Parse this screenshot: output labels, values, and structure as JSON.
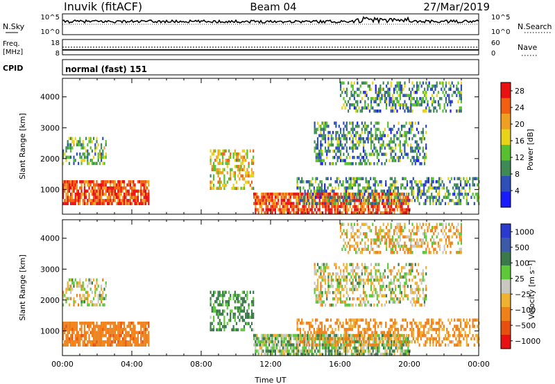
{
  "header": {
    "station": "Inuvik (fitACF)",
    "beam": "Beam 04",
    "date": "27/Mar/2019"
  },
  "strip_panels": {
    "nsky": {
      "label": "N.Sky",
      "ticks": [
        "10^5",
        "10^0"
      ]
    },
    "nsearch": {
      "label": "N.Search",
      "ticks": [
        "10^5",
        "10^0"
      ]
    },
    "freq": {
      "label_line1": "Freq.",
      "label_line2": "[MHz]",
      "ticks": [
        "18",
        "8"
      ]
    },
    "nave": {
      "label": "Nave",
      "ticks": [
        "60",
        "0"
      ]
    },
    "cpid": {
      "label": "CPID",
      "value": "normal (fast) 151"
    }
  },
  "colors": {
    "power": [
      "#1a1aff",
      "#2f4fb8",
      "#3e8a55",
      "#56c030",
      "#e8d21a",
      "#f0a020",
      "#f06010",
      "#e81010"
    ],
    "velocity": [
      "#2a3acc",
      "#3d5aa8",
      "#3a7a4a",
      "#5ec83a",
      "#c8c8c0",
      "#f0b030",
      "#f08018",
      "#e85010",
      "#e81010"
    ]
  },
  "chart_data": [
    {
      "type": "heatmap",
      "title": "Power",
      "xlabel": "",
      "ylabel": "Slant Range [km]",
      "x_ticks": [
        "00:00",
        "04:00",
        "08:00",
        "12:00",
        "16:00",
        "20:00",
        "00:00"
      ],
      "y_ticks": [
        "1000",
        "2000",
        "3000",
        "4000"
      ],
      "ylim": [
        200,
        4600
      ],
      "colorbar": {
        "label": "Power [dB]",
        "ticks": [
          "4",
          "8",
          "12",
          "16",
          "20",
          "24",
          "28"
        ],
        "range": [
          0,
          30
        ]
      },
      "echo_regions": [
        {
          "t_start": 0.0,
          "t_end": 5.0,
          "range_km": [
            500,
            1300
          ],
          "value_dB": 26
        },
        {
          "t_start": 0.0,
          "t_end": 2.5,
          "range_km": [
            1800,
            2700
          ],
          "value_dB": 12
        },
        {
          "t_start": 8.5,
          "t_end": 11.0,
          "range_km": [
            1000,
            2300
          ],
          "value_dB": 18
        },
        {
          "t_start": 11.0,
          "t_end": 20.0,
          "range_km": [
            250,
            900
          ],
          "value_dB": 26
        },
        {
          "t_start": 13.5,
          "t_end": 24.0,
          "range_km": [
            500,
            1400
          ],
          "value_dB": 10
        },
        {
          "t_start": 14.5,
          "t_end": 21.0,
          "range_km": [
            1800,
            3200
          ],
          "value_dB": 10
        },
        {
          "t_start": 16.0,
          "t_end": 23.0,
          "range_km": [
            3500,
            4500
          ],
          "value_dB": 10
        }
      ]
    },
    {
      "type": "heatmap",
      "title": "Velocity",
      "xlabel": "Time UT",
      "ylabel": "Slant Range [km]",
      "x_ticks": [
        "00:00",
        "04:00",
        "08:00",
        "12:00",
        "16:00",
        "20:00",
        "00:00"
      ],
      "y_ticks": [
        "1000",
        "2000",
        "3000",
        "4000"
      ],
      "ylim": [
        200,
        4600
      ],
      "colorbar": {
        "label": "Velocity [m s⁻¹]",
        "ticks": [
          "1000",
          "500",
          "100",
          "25",
          "−25",
          "−100",
          "−500",
          "−1000"
        ],
        "range": [
          -1000,
          1000
        ]
      },
      "echo_regions": [
        {
          "t_start": 0.0,
          "t_end": 5.0,
          "range_km": [
            500,
            1300
          ],
          "value_ms": -400
        },
        {
          "t_start": 0.0,
          "t_end": 2.5,
          "range_km": [
            1800,
            2700
          ],
          "value_ms": 0
        },
        {
          "t_start": 8.5,
          "t_end": 11.0,
          "range_km": [
            1000,
            2300
          ],
          "value_ms": 150
        },
        {
          "t_start": 11.0,
          "t_end": 20.0,
          "range_km": [
            250,
            900
          ],
          "value_ms": 60
        },
        {
          "t_start": 13.5,
          "t_end": 24.0,
          "range_km": [
            500,
            1400
          ],
          "value_ms": -150
        },
        {
          "t_start": 14.5,
          "t_end": 21.0,
          "range_km": [
            1800,
            3200
          ],
          "value_ms": 0
        },
        {
          "t_start": 16.0,
          "t_end": 23.0,
          "range_km": [
            3500,
            4500
          ],
          "value_ms": -60
        }
      ]
    }
  ]
}
